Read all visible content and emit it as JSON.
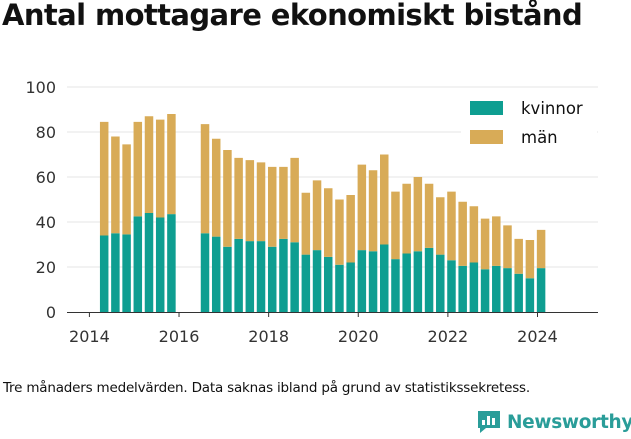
{
  "title": "Antal mottagare ekonomiskt bistånd",
  "caption": "Tre månaders medelvärden. Data saknas ibland på grund av statistikssekretess.",
  "brand": {
    "name": "Newsworthy",
    "icon": "newsworthy-logo-icon",
    "color": "#2a9d99"
  },
  "chart_data": {
    "type": "bar",
    "stacked": true,
    "xlim": [
      2013.5,
      2025.35
    ],
    "ylim": [
      0,
      100
    ],
    "x_ticks": [
      2014,
      2016,
      2018,
      2020,
      2022,
      2024
    ],
    "y_ticks": [
      0,
      20,
      40,
      60,
      80,
      100
    ],
    "grid": "horizontal",
    "legend": "top-right",
    "colors": {
      "kvinnor": "#0e9e91",
      "man": "#d8ab57"
    },
    "x": [
      2014.33,
      2014.58,
      2014.83,
      2015.08,
      2015.33,
      2015.58,
      2015.83,
      2016.58,
      2016.83,
      2017.08,
      2017.33,
      2017.58,
      2017.83,
      2018.08,
      2018.33,
      2018.58,
      2018.83,
      2019.08,
      2019.33,
      2019.58,
      2019.83,
      2020.08,
      2020.33,
      2020.58,
      2020.83,
      2021.08,
      2021.33,
      2021.58,
      2021.83,
      2022.08,
      2022.33,
      2022.58,
      2022.83,
      2023.08,
      2023.33,
      2023.58,
      2023.83,
      2024.08
    ],
    "series": [
      {
        "name": "kvinnor",
        "color": "#0e9e91",
        "values": [
          34,
          35,
          34.5,
          42.5,
          44,
          42,
          43.5,
          35,
          33.5,
          29,
          32.5,
          31.5,
          31.5,
          29,
          32.5,
          31,
          25.5,
          27.5,
          24.5,
          21,
          22,
          27.5,
          27,
          30,
          23.5,
          26,
          27,
          28.5,
          25.5,
          23,
          20.5,
          22,
          19,
          20.5,
          19.5,
          17,
          15,
          19.5
        ]
      },
      {
        "name": "män",
        "color": "#d8ab57",
        "values": [
          50.5,
          43,
          40,
          42,
          43,
          43.5,
          44.5,
          48.5,
          43.5,
          43,
          36,
          36,
          35,
          35.5,
          32,
          37.5,
          27.5,
          31,
          30.5,
          29,
          30,
          38,
          36,
          40,
          30,
          31,
          33,
          28.5,
          25.5,
          30.5,
          28.5,
          25,
          22.5,
          22,
          19,
          15.5,
          17,
          17
        ]
      }
    ]
  }
}
